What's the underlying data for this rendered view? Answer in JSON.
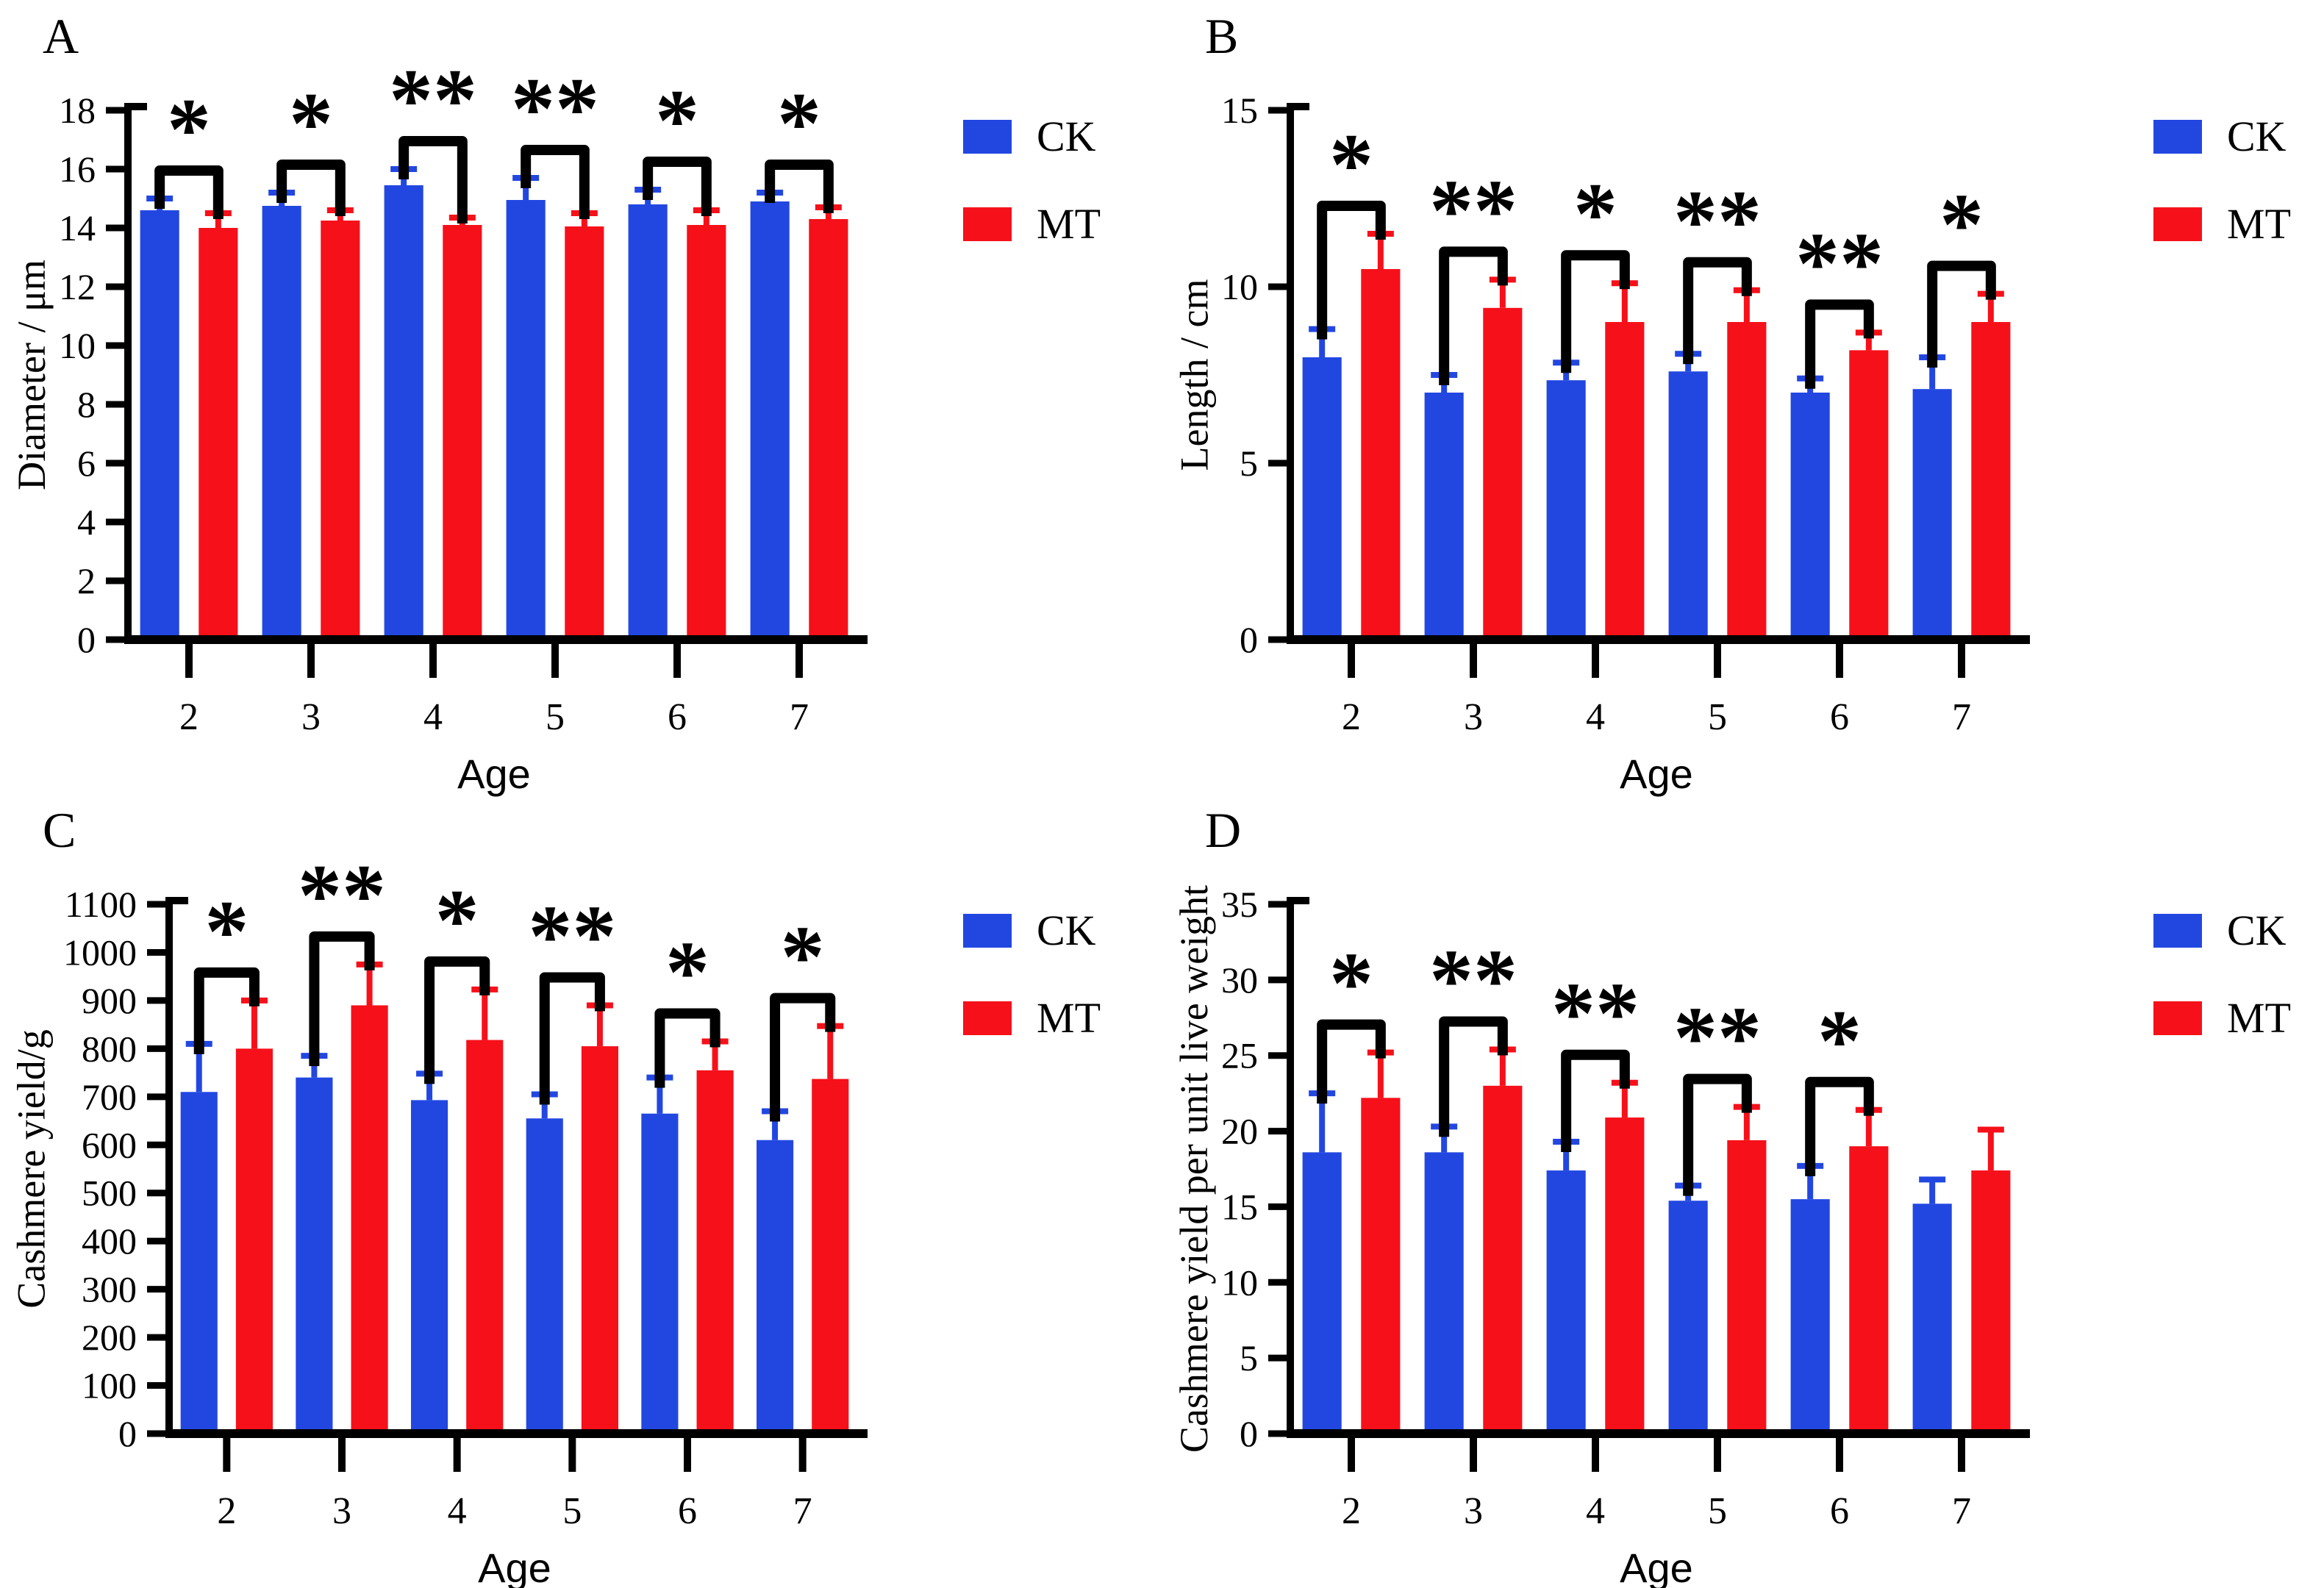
{
  "figure": {
    "background": "#ffffff",
    "axis_color": "#000000",
    "sig_color": "#000000",
    "ck_color": "#2247e1",
    "mt_color": "#f6101a"
  },
  "chart_data": [
    {
      "panel": "A",
      "type": "bar",
      "xlabel": "Age",
      "ylabel": "Diameter / μm",
      "categories": [
        "2",
        "3",
        "4",
        "5",
        "6",
        "7"
      ],
      "ylim": [
        0,
        18
      ],
      "ytick_step": 2,
      "grid": false,
      "legend_position": "right",
      "series": [
        {
          "name": "CK",
          "color": "#2247e1",
          "values": [
            14.6,
            14.75,
            15.45,
            14.95,
            14.8,
            14.9
          ],
          "errors": [
            0.4,
            0.45,
            0.55,
            0.75,
            0.5,
            0.3
          ]
        },
        {
          "name": "MT",
          "color": "#f6101a",
          "values": [
            14.0,
            14.25,
            14.1,
            14.05,
            14.1,
            14.3
          ],
          "errors": [
            0.5,
            0.35,
            0.25,
            0.45,
            0.5,
            0.4
          ]
        }
      ],
      "significance": [
        "*",
        "*",
        "**",
        "**",
        "*",
        "*"
      ]
    },
    {
      "panel": "B",
      "type": "bar",
      "xlabel": "Age",
      "ylabel": "Length / cm",
      "categories": [
        "2",
        "3",
        "4",
        "5",
        "6",
        "7"
      ],
      "ylim": [
        0,
        15
      ],
      "ytick_step": 5,
      "grid": false,
      "legend_position": "right",
      "series": [
        {
          "name": "CK",
          "color": "#2247e1",
          "values": [
            8.0,
            7.0,
            7.35,
            7.6,
            7.0,
            7.1
          ],
          "errors": [
            0.8,
            0.5,
            0.5,
            0.5,
            0.4,
            0.9
          ]
        },
        {
          "name": "MT",
          "color": "#f6101a",
          "values": [
            10.5,
            9.4,
            9.0,
            9.0,
            8.2,
            9.0
          ],
          "errors": [
            1.0,
            0.8,
            1.1,
            0.9,
            0.5,
            0.8
          ]
        }
      ],
      "significance": [
        "*",
        "**",
        "*",
        "**",
        "**",
        "*"
      ]
    },
    {
      "panel": "C",
      "type": "bar",
      "xlabel": "Age",
      "ylabel": "Cashmere yield/g",
      "categories": [
        "2",
        "3",
        "4",
        "5",
        "6",
        "7"
      ],
      "ylim": [
        0,
        1100
      ],
      "ytick_step": 100,
      "grid": false,
      "legend_position": "right",
      "series": [
        {
          "name": "CK",
          "color": "#2247e1",
          "values": [
            710,
            740,
            693,
            655,
            665,
            610
          ],
          "errors": [
            100,
            45,
            55,
            50,
            75,
            60
          ]
        },
        {
          "name": "MT",
          "color": "#f6101a",
          "values": [
            800,
            890,
            818,
            805,
            755,
            737
          ],
          "errors": [
            100,
            85,
            105,
            85,
            60,
            110
          ]
        }
      ],
      "significance": [
        "*",
        "**",
        "*",
        "**",
        "*",
        "*"
      ]
    },
    {
      "panel": "D",
      "type": "bar",
      "xlabel": "Age",
      "ylabel": "Cashmere yield per unit live weight",
      "categories": [
        "2",
        "3",
        "4",
        "5",
        "6",
        "7"
      ],
      "ylim": [
        0,
        35
      ],
      "ytick_step": 5,
      "grid": false,
      "legend_position": "right",
      "series": [
        {
          "name": "CK",
          "color": "#2247e1",
          "values": [
            18.6,
            18.6,
            17.4,
            15.4,
            15.5,
            15.2
          ],
          "errors": [
            3.9,
            1.7,
            1.9,
            1.0,
            2.2,
            1.6
          ]
        },
        {
          "name": "MT",
          "color": "#f6101a",
          "values": [
            22.2,
            23.0,
            20.9,
            19.4,
            19.0,
            17.4
          ],
          "errors": [
            3.0,
            2.4,
            2.3,
            2.2,
            2.4,
            2.7
          ]
        }
      ],
      "significance": [
        "*",
        "**",
        "**",
        "**",
        "*",
        ""
      ]
    }
  ]
}
